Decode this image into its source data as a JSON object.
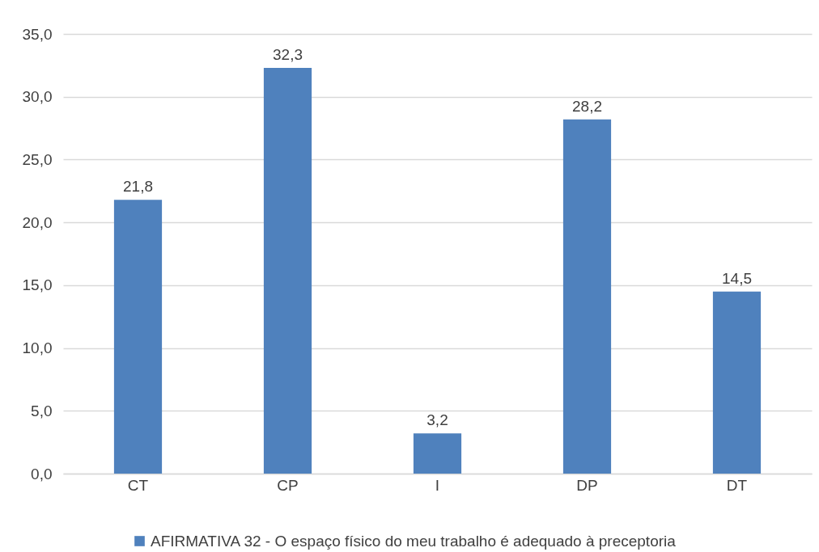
{
  "chart_data": {
    "type": "bar",
    "categories": [
      "CT",
      "CP",
      "I",
      "DP",
      "DT"
    ],
    "series": [
      {
        "name": "AFIRMATIVA 32 - O espaço físico do meu trabalho é adequado à preceptoria",
        "color": "#4f81bd",
        "values": [
          21.8,
          32.3,
          3.2,
          28.2,
          14.5
        ],
        "value_labels": [
          "21,8",
          "32,3",
          "3,2",
          "28,2",
          "14,5"
        ]
      }
    ],
    "ylim": [
      0,
      35
    ],
    "yticks": [
      {
        "value": 0,
        "label": "0,0"
      },
      {
        "value": 5,
        "label": "5,0"
      },
      {
        "value": 10,
        "label": "10,0"
      },
      {
        "value": 15,
        "label": "15,0"
      },
      {
        "value": 20,
        "label": "20,0"
      },
      {
        "value": 25,
        "label": "25,0"
      },
      {
        "value": 30,
        "label": "30,0"
      },
      {
        "value": 35,
        "label": "35,0"
      }
    ],
    "grid": "y",
    "legend": "bottom"
  }
}
